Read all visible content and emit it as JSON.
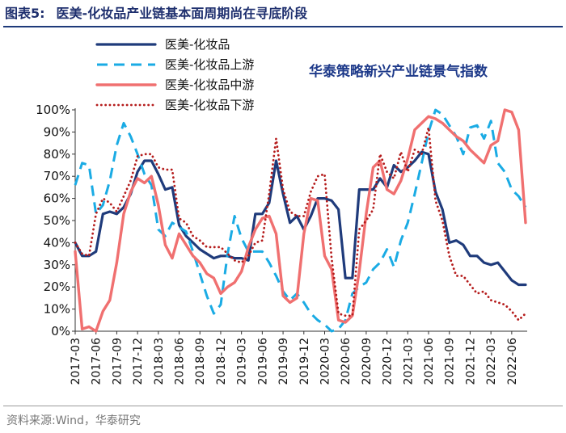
{
  "figure": {
    "label": "图表5:",
    "title": "医美-化妆品产业链基本面周期尚在寻底阶段",
    "corner_text": "华泰策略新兴产业链景气指数",
    "source_label": "资料来源:",
    "source_text": "Wind，华泰研究"
  },
  "colors": {
    "series_dark_blue": "#1f3b7b",
    "series_light_blue": "#1aabe4",
    "series_salmon": "#f07070",
    "series_dark_red": "#b51c1c",
    "title_text": "#1e2f6e",
    "corner_text": "#1e3a8a"
  },
  "chart_data": {
    "type": "line",
    "title": "",
    "xlabel": "",
    "ylabel": "",
    "ylim": [
      0,
      100
    ],
    "yticks": [
      "0%",
      "10%",
      "20%",
      "30%",
      "40%",
      "50%",
      "60%",
      "70%",
      "80%",
      "90%",
      "100%"
    ],
    "y_unit": "%",
    "grid": false,
    "legend_position": "top-left",
    "x_start": "2017-03",
    "x_end": "2022-06",
    "xtick_labels": [
      "2017-03",
      "2017-06",
      "2017-09",
      "2017-12",
      "2018-03",
      "2018-06",
      "2018-09",
      "2018-12",
      "2019-03",
      "2019-06",
      "2019-09",
      "2019-12",
      "2020-03",
      "2020-06",
      "2020-09",
      "2020-12",
      "2021-03",
      "2021-06",
      "2021-09",
      "2021-12",
      "2022-03",
      "2022-06"
    ],
    "series": [
      {
        "name": "医美-化妆品",
        "style": "solid-thick",
        "color": "#1f3b7b",
        "values": [
          40,
          34,
          34,
          36,
          53,
          54,
          53,
          56,
          62,
          72,
          77,
          77,
          71,
          64,
          65,
          48,
          43,
          40,
          37,
          35,
          33,
          34,
          34,
          33,
          33,
          32,
          53,
          53,
          58,
          77,
          62,
          49,
          52,
          46,
          52,
          60,
          60,
          59,
          55,
          24,
          24,
          64,
          64,
          64,
          69,
          65,
          75,
          72,
          74,
          77,
          81,
          80,
          63,
          55,
          40,
          41,
          39,
          34,
          34,
          31,
          30,
          31,
          27,
          23,
          21,
          21
        ]
      },
      {
        "name": "医美-化妆品上游",
        "style": "dashed",
        "color": "#1aabe4",
        "values": [
          66,
          76,
          75,
          53,
          57,
          68,
          84,
          94,
          88,
          80,
          71,
          66,
          46,
          43,
          49,
          47,
          45,
          36,
          26,
          16,
          8,
          12,
          35,
          52,
          42,
          36,
          36,
          36,
          31,
          25,
          18,
          14,
          17,
          13,
          8,
          5,
          3,
          0,
          1,
          5,
          17,
          20,
          22,
          28,
          31,
          37,
          29,
          41,
          49,
          62,
          76,
          90,
          100,
          98,
          93,
          88,
          80,
          92,
          93,
          87,
          95,
          76,
          72,
          64,
          61,
          56
        ]
      },
      {
        "name": "医美-化妆品中游",
        "style": "solid",
        "color": "#f07070",
        "values": [
          36,
          1,
          2,
          0,
          9,
          14,
          31,
          53,
          63,
          69,
          67,
          70,
          57,
          39,
          33,
          44,
          39,
          34,
          31,
          26,
          24,
          17,
          20,
          22,
          27,
          38,
          46,
          51,
          52,
          44,
          16,
          13,
          15,
          44,
          60,
          59,
          34,
          28,
          5,
          4,
          7,
          27,
          53,
          74,
          77,
          64,
          62,
          68,
          78,
          91,
          94,
          97,
          96,
          94,
          91,
          88,
          86,
          82,
          79,
          76,
          84,
          86,
          100,
          99,
          91,
          49
        ]
      },
      {
        "name": "医美-化妆品下游",
        "style": "dotted",
        "color": "#b51c1c",
        "values": [
          40,
          35,
          34,
          53,
          60,
          58,
          54,
          61,
          68,
          79,
          80,
          80,
          74,
          73,
          73,
          51,
          49,
          43,
          41,
          38,
          38,
          38,
          35,
          32,
          31,
          34,
          40,
          41,
          62,
          87,
          64,
          54,
          52,
          52,
          63,
          70,
          71,
          33,
          8,
          7,
          7,
          46,
          50,
          55,
          80,
          72,
          69,
          81,
          72,
          82,
          80,
          92,
          59,
          50,
          34,
          25,
          25,
          21,
          17,
          18,
          14,
          13,
          12,
          9,
          5,
          8
        ]
      }
    ]
  }
}
